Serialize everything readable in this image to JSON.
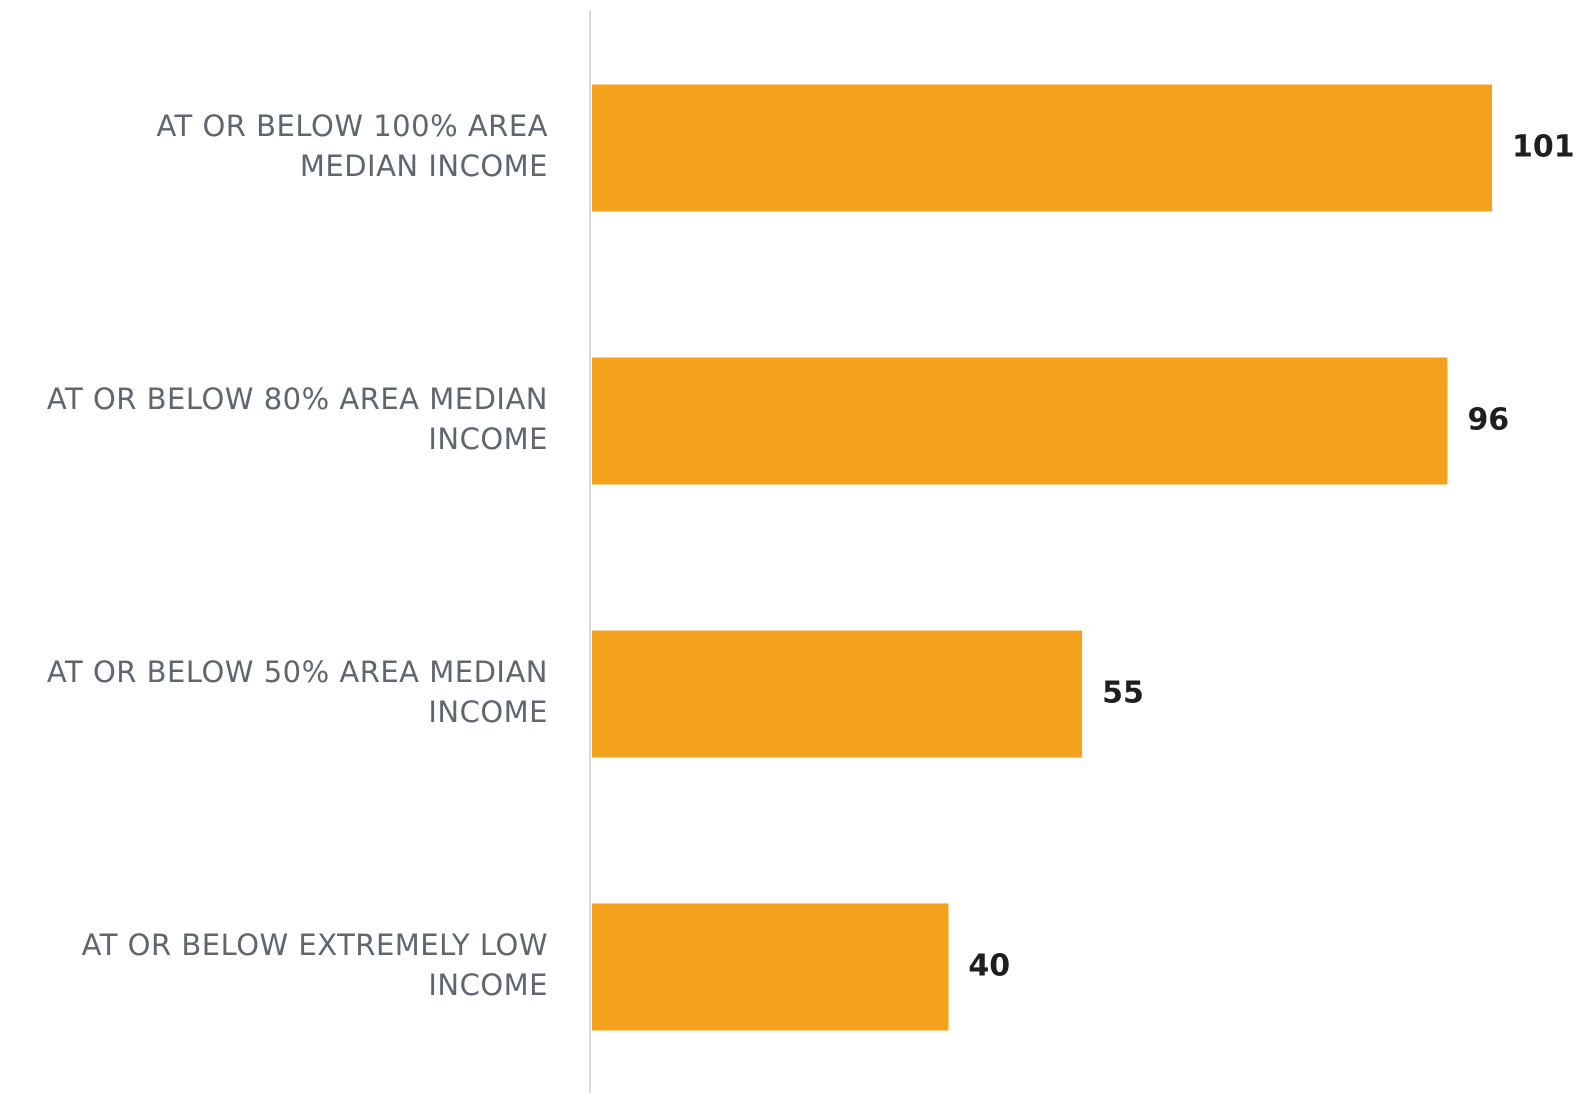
{
  "chart_data": {
    "type": "bar",
    "orientation": "horizontal",
    "title": "",
    "xlabel": "",
    "ylabel": "",
    "categories": [
      [
        "AT OR BELOW 100% AREA",
        "MEDIAN INCOME"
      ],
      [
        "AT OR BELOW 80% AREA MEDIAN",
        "INCOME"
      ],
      [
        "AT OR BELOW 50% AREA MEDIAN",
        "INCOME"
      ],
      [
        "AT OR BELOW EXTREMELY LOW",
        "INCOME"
      ]
    ],
    "values": [
      101,
      96,
      55,
      40
    ],
    "value_labels": [
      "101",
      "96",
      "55",
      "40"
    ],
    "xlim": [
      0,
      101
    ],
    "grid": false,
    "legend": "none",
    "colors": {
      "bar": "#F4A11E",
      "axis": "#D9D9D9",
      "category_text": "#5F6670",
      "value_text": "#1F1F1F"
    }
  }
}
